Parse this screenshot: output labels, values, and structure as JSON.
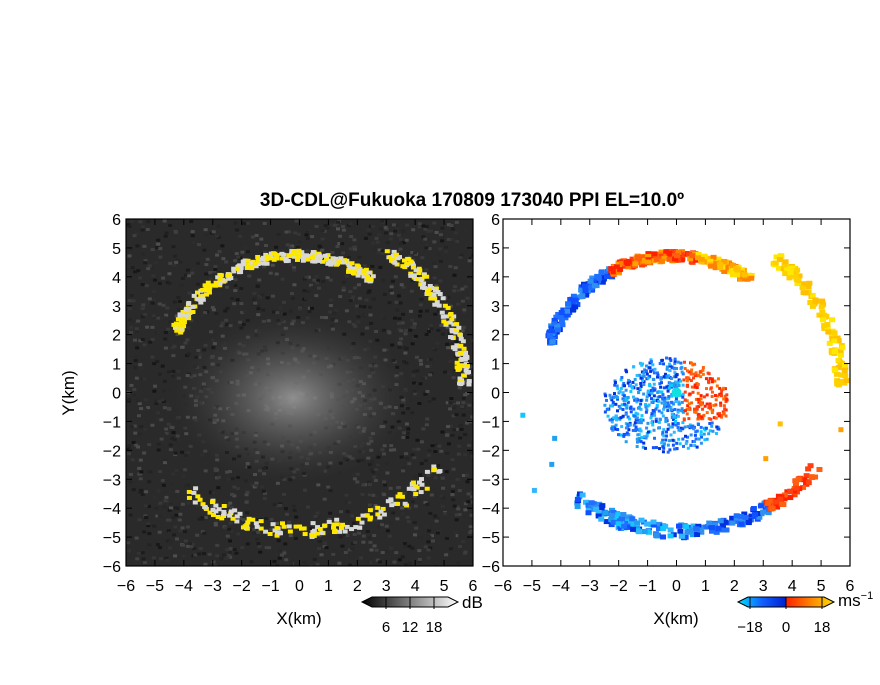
{
  "chart_data": {
    "title": "3D-CDL@Fukuoka 170809 173040 PPI EL=10.0º",
    "xlabel": "X(km)",
    "ylabel": "Y(km)",
    "xlim": [
      -6,
      6
    ],
    "ylim": [
      -6,
      6
    ],
    "x_ticks": [
      "−6",
      "−5",
      "−4",
      "−3",
      "−2",
      "−1",
      "0",
      "1",
      "2",
      "3",
      "4",
      "5",
      "6"
    ],
    "y_ticks": [
      "6",
      "5",
      "4",
      "3",
      "2",
      "1",
      "0",
      "−1",
      "−2",
      "−3",
      "−4",
      "−5",
      "−6"
    ],
    "panels": [
      {
        "type": "heatmap",
        "quantity": "intensity",
        "colormap": "grayscale with yellow highlights",
        "colorbar": {
          "unit": "dB",
          "ticks": [
            "6",
            "12",
            "18"
          ],
          "range": [
            0,
            24
          ],
          "colors": [
            "#000000",
            "#ffffff"
          ]
        },
        "highlight_color": "#ffe800"
      },
      {
        "type": "heatmap",
        "quantity": "velocity",
        "colormap": "blue-cyan-red-yellow",
        "colorbar": {
          "unit": "ms",
          "unit_exp": "−1",
          "ticks": [
            "−18",
            "0",
            "18"
          ],
          "range": [
            -24,
            24
          ],
          "colors": [
            "#00e0ff",
            "#1060ff",
            "#0020d0",
            "#ff2000",
            "#ff8000",
            "#ffe000"
          ]
        }
      }
    ]
  }
}
